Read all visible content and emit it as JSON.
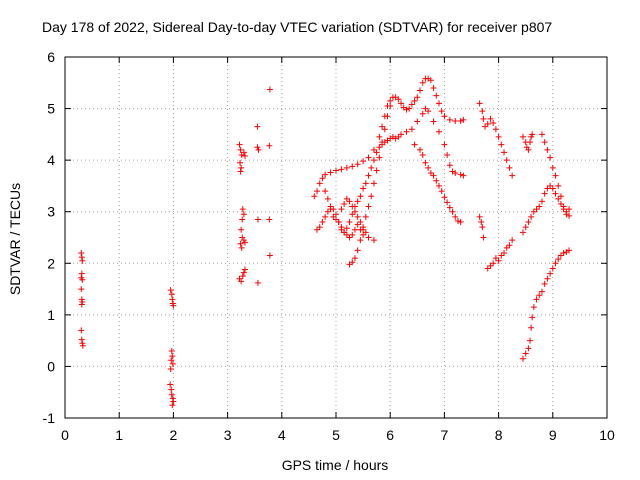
{
  "chart_data": {
    "type": "scatter",
    "title": "Day 178 of 2022, Sidereal Day-to-day VTEC variation (SDTVAR) for receiver p807",
    "xlabel": "GPS time / hours",
    "ylabel": "SDTVAR / TECUs",
    "xlim": [
      0,
      10
    ],
    "ylim": [
      -1,
      6
    ],
    "x_ticks": [
      "0",
      "1",
      "2",
      "3",
      "4",
      "5",
      "6",
      "7",
      "8",
      "9",
      "10"
    ],
    "y_ticks": [
      "-1",
      "0",
      "1",
      "2",
      "3",
      "4",
      "5",
      "6"
    ],
    "grid": true,
    "marker": "+",
    "color": "#ff0000",
    "segments": [
      {
        "points": [
          [
            0.3,
            2.2
          ],
          [
            0.31,
            2.12
          ],
          [
            0.32,
            2.05
          ],
          [
            0.31,
            1.8
          ],
          [
            0.3,
            1.72
          ],
          [
            0.32,
            1.68
          ],
          [
            0.3,
            1.5
          ],
          [
            0.31,
            1.3
          ],
          [
            0.32,
            1.25
          ],
          [
            0.31,
            1.2
          ],
          [
            0.3,
            0.7
          ],
          [
            0.31,
            0.52
          ],
          [
            0.32,
            0.45
          ],
          [
            0.33,
            0.4
          ]
        ]
      },
      {
        "points": [
          [
            1.95,
            1.48
          ],
          [
            1.97,
            1.4
          ],
          [
            1.98,
            1.3
          ],
          [
            1.99,
            1.22
          ],
          [
            2.0,
            1.18
          ],
          [
            1.97,
            0.3
          ],
          [
            1.98,
            0.2
          ],
          [
            1.96,
            0.12
          ],
          [
            1.99,
            0.05
          ],
          [
            1.95,
            -0.05
          ],
          [
            1.94,
            -0.35
          ],
          [
            1.96,
            -0.45
          ],
          [
            1.97,
            -0.55
          ],
          [
            1.99,
            -0.62
          ],
          [
            2.0,
            -0.68
          ],
          [
            1.98,
            -0.75
          ]
        ]
      },
      {
        "points": [
          [
            3.22,
            4.3
          ],
          [
            3.24,
            4.2
          ],
          [
            3.26,
            4.1
          ],
          [
            3.23,
            3.95
          ],
          [
            3.25,
            3.85
          ],
          [
            3.24,
            3.78
          ],
          [
            3.3,
            4.15
          ],
          [
            3.32,
            4.08
          ],
          [
            3.28,
            3.05
          ],
          [
            3.3,
            2.95
          ],
          [
            3.27,
            2.85
          ],
          [
            3.25,
            2.65
          ],
          [
            3.27,
            2.5
          ],
          [
            3.24,
            2.38
          ],
          [
            3.26,
            2.3
          ],
          [
            3.3,
            2.45
          ],
          [
            3.32,
            2.4
          ],
          [
            3.22,
            1.7
          ],
          [
            3.25,
            1.65
          ],
          [
            3.28,
            1.75
          ],
          [
            3.3,
            1.82
          ],
          [
            3.32,
            1.88
          ]
        ]
      },
      {
        "points": [
          [
            3.55,
            4.65
          ],
          [
            3.55,
            4.25
          ],
          [
            3.57,
            4.2
          ],
          [
            3.56,
            2.85
          ],
          [
            3.56,
            1.62
          ],
          [
            3.78,
            5.37
          ],
          [
            3.77,
            4.28
          ],
          [
            3.77,
            2.85
          ],
          [
            3.78,
            2.15
          ]
        ]
      },
      {
        "points": [
          [
            4.6,
            3.3
          ],
          [
            4.65,
            3.4
          ],
          [
            4.7,
            3.55
          ],
          [
            4.75,
            3.65
          ],
          [
            4.8,
            3.72
          ],
          [
            4.9,
            3.76
          ],
          [
            5.0,
            3.8
          ],
          [
            5.1,
            3.82
          ],
          [
            5.2,
            3.85
          ],
          [
            5.3,
            3.88
          ],
          [
            5.4,
            3.92
          ],
          [
            5.5,
            3.98
          ],
          [
            5.6,
            4.05
          ],
          [
            5.7,
            4.2
          ],
          [
            5.8,
            4.45
          ],
          [
            5.85,
            4.65
          ],
          [
            5.9,
            4.85
          ],
          [
            5.95,
            5.05
          ],
          [
            6.0,
            5.15
          ],
          [
            6.05,
            5.22
          ],
          [
            6.1,
            5.22
          ],
          [
            6.15,
            5.18
          ],
          [
            6.2,
            5.1
          ],
          [
            6.25,
            5.02
          ],
          [
            6.3,
            4.98
          ],
          [
            6.35,
            5.0
          ],
          [
            6.4,
            5.08
          ],
          [
            6.45,
            5.15
          ],
          [
            6.5,
            5.22
          ],
          [
            6.55,
            5.35
          ],
          [
            6.6,
            5.5
          ],
          [
            6.65,
            5.58
          ],
          [
            6.7,
            5.58
          ],
          [
            6.75,
            5.55
          ],
          [
            6.8,
            5.4
          ],
          [
            6.85,
            5.25
          ],
          [
            6.9,
            5.1
          ],
          [
            6.95,
            4.95
          ],
          [
            7.0,
            4.85
          ],
          [
            7.1,
            4.78
          ],
          [
            7.2,
            4.76
          ],
          [
            7.3,
            4.76
          ],
          [
            7.35,
            4.78
          ]
        ]
      },
      {
        "points": [
          [
            4.65,
            2.65
          ],
          [
            4.7,
            2.7
          ],
          [
            4.75,
            2.8
          ],
          [
            4.8,
            2.9
          ],
          [
            4.85,
            3.0
          ],
          [
            4.9,
            3.1
          ],
          [
            4.95,
            3.05
          ],
          [
            5.0,
            2.95
          ],
          [
            5.05,
            2.8
          ],
          [
            5.1,
            2.65
          ],
          [
            5.15,
            2.6
          ],
          [
            5.2,
            2.68
          ],
          [
            5.25,
            2.8
          ],
          [
            5.3,
            2.95
          ],
          [
            5.35,
            3.1
          ],
          [
            5.4,
            3.2
          ],
          [
            5.45,
            3.3
          ],
          [
            5.5,
            3.45
          ],
          [
            5.55,
            3.55
          ],
          [
            5.6,
            3.7
          ],
          [
            5.65,
            3.85
          ],
          [
            5.7,
            4.0
          ],
          [
            5.75,
            4.15
          ],
          [
            5.8,
            4.25
          ],
          [
            5.85,
            4.3
          ],
          [
            5.9,
            4.35
          ],
          [
            5.95,
            4.38
          ],
          [
            6.0,
            4.42
          ],
          [
            6.05,
            4.45
          ],
          [
            6.1,
            4.42
          ],
          [
            6.15,
            4.45
          ],
          [
            6.2,
            4.5
          ],
          [
            6.3,
            4.55
          ],
          [
            6.4,
            4.6
          ],
          [
            6.5,
            4.75
          ],
          [
            6.6,
            4.9
          ],
          [
            6.65,
            5.0
          ],
          [
            6.7,
            4.95
          ],
          [
            6.8,
            4.75
          ],
          [
            6.9,
            4.55
          ],
          [
            7.0,
            4.3
          ],
          [
            7.05,
            4.1
          ],
          [
            7.1,
            3.9
          ],
          [
            7.15,
            3.78
          ],
          [
            7.2,
            3.75
          ],
          [
            7.3,
            3.72
          ],
          [
            7.35,
            3.7
          ]
        ]
      },
      {
        "points": [
          [
            4.8,
            3.4
          ],
          [
            4.85,
            3.25
          ],
          [
            4.9,
            3.05
          ],
          [
            4.95,
            2.9
          ],
          [
            5.0,
            2.85
          ],
          [
            5.05,
            2.8
          ],
          [
            5.1,
            2.7
          ],
          [
            5.15,
            2.6
          ],
          [
            5.2,
            2.55
          ],
          [
            5.25,
            2.5
          ],
          [
            5.3,
            2.55
          ],
          [
            5.35,
            2.65
          ],
          [
            5.4,
            2.75
          ],
          [
            5.45,
            2.65
          ],
          [
            5.5,
            2.55
          ],
          [
            5.6,
            2.5
          ],
          [
            5.7,
            2.45
          ]
        ]
      },
      {
        "points": [
          [
            5.1,
            3.05
          ],
          [
            5.15,
            3.15
          ],
          [
            5.2,
            3.25
          ],
          [
            5.25,
            3.2
          ],
          [
            5.3,
            3.1
          ],
          [
            5.35,
            3.0
          ],
          [
            5.4,
            2.9
          ],
          [
            5.45,
            2.8
          ],
          [
            5.5,
            2.7
          ],
          [
            5.55,
            2.6
          ]
        ]
      },
      {
        "points": [
          [
            5.25,
            1.98
          ],
          [
            5.3,
            2.02
          ],
          [
            5.35,
            2.1
          ],
          [
            5.4,
            2.25
          ],
          [
            5.45,
            2.45
          ],
          [
            5.5,
            2.65
          ],
          [
            5.55,
            2.9
          ],
          [
            5.6,
            3.1
          ],
          [
            5.65,
            3.3
          ],
          [
            5.7,
            3.55
          ],
          [
            5.75,
            3.8
          ],
          [
            5.8,
            4.05
          ],
          [
            5.85,
            4.35
          ],
          [
            5.9,
            4.6
          ],
          [
            5.95,
            4.85
          ],
          [
            6.0,
            5.05
          ]
        ]
      },
      {
        "points": [
          [
            6.45,
            4.3
          ],
          [
            6.55,
            4.2
          ],
          [
            6.6,
            4.1
          ],
          [
            6.65,
            3.95
          ],
          [
            6.7,
            3.85
          ],
          [
            6.75,
            3.75
          ],
          [
            6.8,
            3.7
          ],
          [
            6.85,
            3.6
          ],
          [
            6.9,
            3.5
          ],
          [
            6.95,
            3.4
          ],
          [
            7.0,
            3.28
          ],
          [
            7.05,
            3.18
          ],
          [
            7.1,
            3.08
          ],
          [
            7.15,
            3.0
          ],
          [
            7.2,
            2.9
          ],
          [
            7.25,
            2.82
          ],
          [
            7.3,
            2.8
          ]
        ]
      },
      {
        "points": [
          [
            7.65,
            5.1
          ],
          [
            7.7,
            4.95
          ],
          [
            7.72,
            4.8
          ],
          [
            7.75,
            4.65
          ],
          [
            7.8,
            4.7
          ],
          [
            7.85,
            4.8
          ],
          [
            7.9,
            4.72
          ],
          [
            7.95,
            4.6
          ],
          [
            8.0,
            4.45
          ],
          [
            8.05,
            4.3
          ],
          [
            8.1,
            4.15
          ],
          [
            8.15,
            4.0
          ],
          [
            8.2,
            3.85
          ],
          [
            8.25,
            3.7
          ]
        ]
      },
      {
        "points": [
          [
            7.65,
            2.9
          ],
          [
            7.68,
            2.8
          ],
          [
            7.7,
            2.7
          ],
          [
            7.72,
            2.5
          ]
        ]
      },
      {
        "points": [
          [
            7.8,
            1.9
          ],
          [
            7.85,
            1.95
          ],
          [
            7.9,
            2.0
          ],
          [
            7.95,
            2.1
          ],
          [
            8.0,
            2.05
          ],
          [
            8.05,
            2.15
          ],
          [
            8.1,
            2.2
          ],
          [
            8.15,
            2.3
          ],
          [
            8.2,
            2.35
          ],
          [
            8.25,
            2.45
          ]
        ]
      },
      {
        "points": [
          [
            8.45,
            4.45
          ],
          [
            8.5,
            4.35
          ],
          [
            8.52,
            4.25
          ],
          [
            8.55,
            4.2
          ],
          [
            8.58,
            4.35
          ],
          [
            8.6,
            4.45
          ],
          [
            8.62,
            4.5
          ]
        ]
      },
      {
        "points": [
          [
            8.45,
            2.6
          ],
          [
            8.5,
            2.7
          ],
          [
            8.55,
            2.8
          ],
          [
            8.6,
            2.9
          ],
          [
            8.65,
            3.0
          ],
          [
            8.7,
            3.05
          ],
          [
            8.75,
            3.1
          ],
          [
            8.8,
            3.2
          ],
          [
            8.85,
            3.35
          ],
          [
            8.9,
            3.45
          ],
          [
            8.95,
            3.5
          ],
          [
            9.0,
            3.45
          ],
          [
            9.05,
            3.35
          ],
          [
            9.1,
            3.25
          ],
          [
            9.15,
            3.15
          ],
          [
            9.2,
            3.05
          ],
          [
            9.25,
            2.95
          ],
          [
            9.3,
            2.92
          ]
        ]
      },
      {
        "points": [
          [
            8.8,
            4.5
          ],
          [
            8.85,
            4.35
          ],
          [
            8.9,
            4.2
          ],
          [
            8.95,
            4.05
          ],
          [
            9.0,
            3.85
          ],
          [
            9.05,
            3.7
          ],
          [
            9.1,
            3.5
          ],
          [
            9.15,
            3.3
          ],
          [
            9.2,
            3.1
          ],
          [
            9.25,
            3.0
          ],
          [
            9.3,
            3.05
          ]
        ]
      },
      {
        "points": [
          [
            8.45,
            0.15
          ],
          [
            8.5,
            0.25
          ],
          [
            8.55,
            0.35
          ],
          [
            8.58,
            0.5
          ],
          [
            8.6,
            0.75
          ],
          [
            8.62,
            0.95
          ],
          [
            8.65,
            1.15
          ],
          [
            8.7,
            1.3
          ],
          [
            8.75,
            1.38
          ],
          [
            8.8,
            1.45
          ],
          [
            8.85,
            1.6
          ],
          [
            8.9,
            1.7
          ],
          [
            8.95,
            1.8
          ],
          [
            9.0,
            1.9
          ],
          [
            9.05,
            2.0
          ],
          [
            9.1,
            2.08
          ],
          [
            9.15,
            2.15
          ],
          [
            9.2,
            2.2
          ],
          [
            9.25,
            2.22
          ],
          [
            9.3,
            2.25
          ]
        ]
      }
    ]
  }
}
